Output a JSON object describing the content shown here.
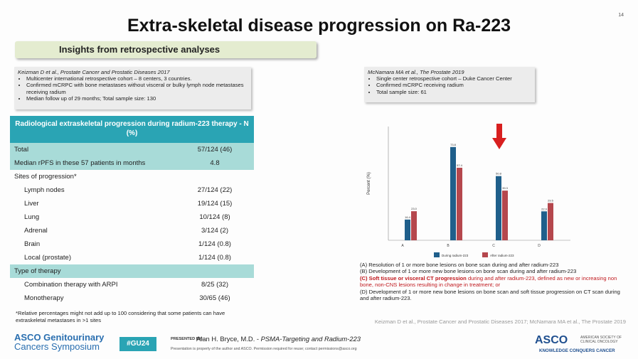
{
  "page_number": "14",
  "title": "Extra-skeletal disease progression on Ra-223",
  "subtitle": "Insights from retrospective analyses",
  "left_ref": {
    "head": "Keizman D et al., Prostate Cancer and Prostatic Diseases 2017",
    "bullets": [
      "Multicenter international retrospective cohort – 8 centers, 3 countries.",
      "Confirmed mCRPC with bone metastases without visceral or bulky lymph node metastases receiving radium",
      "Median follow up of 29 months; Total sample size: 130"
    ]
  },
  "right_ref": {
    "head": "McNamara MA et al., The Prostate 2019",
    "bullets": [
      "Single center retrospective cohort – Duke Cancer Center",
      "Confirmed mCRPC receiving radium",
      "Total sample size: 61"
    ]
  },
  "table": {
    "header": "Radiological extraskeletal progression during radium-223 therapy - N (%)",
    "rows": [
      {
        "label": "Total",
        "value": "57/124 (46)",
        "style": "hl"
      },
      {
        "label": "Median rPFS in these 57 patients in months",
        "value": "4.8",
        "style": "hl"
      },
      {
        "label": "Sites of progression*",
        "value": "",
        "style": "plain"
      },
      {
        "label": "Lymph nodes",
        "value": "27/124 (22)",
        "style": "ind"
      },
      {
        "label": "Liver",
        "value": "19/124 (15)",
        "style": "ind"
      },
      {
        "label": "Lung",
        "value": "10/124 (8)",
        "style": "ind"
      },
      {
        "label": "Adrenal",
        "value": "3/124 (2)",
        "style": "ind"
      },
      {
        "label": "Brain",
        "value": "1/124 (0.8)",
        "style": "ind"
      },
      {
        "label": "Local (prostate)",
        "value": "1/124 (0.8)",
        "style": "ind"
      },
      {
        "label": "Type of therapy",
        "value": "",
        "style": "sec"
      },
      {
        "label": "Combination therapy with ARPI",
        "value": "8/25 (32)",
        "style": "ind"
      },
      {
        "label": "Monotherapy",
        "value": "30/65 (46)",
        "style": "ind"
      }
    ]
  },
  "footnote": "*Relative percentages might not add up to 100 considering that some patients can have extraskeletal metastases in >1 sites",
  "chart_data": {
    "type": "bar",
    "categories": [
      "A",
      "B",
      "C",
      "D"
    ],
    "ylabel": "Percent (%)",
    "ylim": [
      0,
      90
    ],
    "series": [
      {
        "name": "During radium-223",
        "color": "#1f5f8b",
        "values": [
          16.4,
          73.8,
          50.8,
          22.9
        ],
        "labels": [
          "16.4",
          "73.8",
          "50.8",
          "22.9"
        ]
      },
      {
        "name": "After radium-223",
        "color": "#b5474d",
        "values": [
          23.0,
          57.4,
          39.3,
          29.5
        ],
        "labels": [
          "23.0",
          "57.4",
          "39.3",
          "29.5"
        ]
      }
    ],
    "annotation": "red down arrow above C"
  },
  "legend_items": [
    {
      "text": "(A)  Resolution of 1 or more bone lesions on bone scan during and after radium-223",
      "style": "plain"
    },
    {
      "text": "(B)  Development of 1 or more new bone lesions on bone scan during and after radium-223",
      "style": "plain"
    },
    {
      "text_red": "(C)  Soft tissue or visceral CT progression",
      "text_red2": "during and after radium-223, defined as new or increasing non bone, non-CNS lesions resulting in change in treatment; or",
      "style": "red"
    },
    {
      "text": "(D)  Development of 1 or more new bone lesions on bone scan and soft tissue progression on CT scan during and after radium-223.",
      "style": "plain"
    }
  ],
  "cite_right": "Keizman D et al., Prostate Cancer and Prostatic Diseases 2017; McNamara MA et al., The Prostate 2019",
  "footer": {
    "asco_left_1": "ASCO Genitourinary",
    "asco_left_2": "Cancers Symposium",
    "tag": "#GU24",
    "presented_by": "PRESENTED BY:",
    "presenter": "Alan H. Bryce, M.D. - ",
    "presenter_talk": "PSMA-Targeting and Radium-223",
    "permission": "Presentation is property of the author and ASCO. Permission required for reuse; contact permissions@asco.org",
    "asco_right": "ASCO",
    "asco_right_soc": "AMERICAN SOCIETY OF CLINICAL ONCOLOGY",
    "asco_right_tag": "KNOWLEDGE CONQUERS CANCER"
  }
}
